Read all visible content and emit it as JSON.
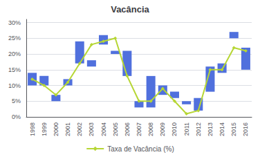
{
  "chart_data": {
    "type": "line",
    "title": "Vacância",
    "categories": [
      "1998",
      "1999",
      "2000",
      "2001",
      "2002",
      "2003",
      "2004",
      "2005",
      "2006",
      "2007",
      "2008",
      "2009",
      "2010",
      "2011",
      "2012",
      "2013",
      "2014",
      "2015",
      "2016"
    ],
    "series": [
      {
        "type": "range",
        "low": [
          0.1,
          0.1,
          0.05,
          0.1,
          0.17,
          0.16,
          0.23,
          0.2,
          0.13,
          0.03,
          0.03,
          0.07,
          0.06,
          0.04,
          0.02,
          0.08,
          0.14,
          0.25,
          0.15
        ],
        "high": [
          0.14,
          0.13,
          0.07,
          0.12,
          0.24,
          0.18,
          0.26,
          0.21,
          0.21,
          0.05,
          0.13,
          0.1,
          0.08,
          0.05,
          0.06,
          0.16,
          0.17,
          0.27,
          0.22
        ]
      },
      {
        "type": "line",
        "name": "Taxa de Vacância (%)",
        "marker": "diamond",
        "values": [
          0.12,
          0.1,
          0.07,
          0.11,
          0.17,
          0.23,
          0.24,
          0.25,
          0.13,
          0.05,
          0.05,
          0.09,
          0.05,
          0.01,
          0.02,
          0.15,
          0.15,
          0.22,
          0.21
        ]
      }
    ],
    "ylim": [
      0,
      0.31
    ],
    "yticks": [
      {
        "value": 0.0,
        "label": "0%"
      },
      {
        "value": 0.05,
        "label": "5%"
      },
      {
        "value": 0.1,
        "label": "10%"
      },
      {
        "value": 0.15,
        "label": "15%"
      },
      {
        "value": 0.2,
        "label": "20%"
      },
      {
        "value": 0.25,
        "label": "25%"
      },
      {
        "value": 0.3,
        "label": "30%"
      }
    ],
    "grid": true,
    "legend": "bottom"
  }
}
